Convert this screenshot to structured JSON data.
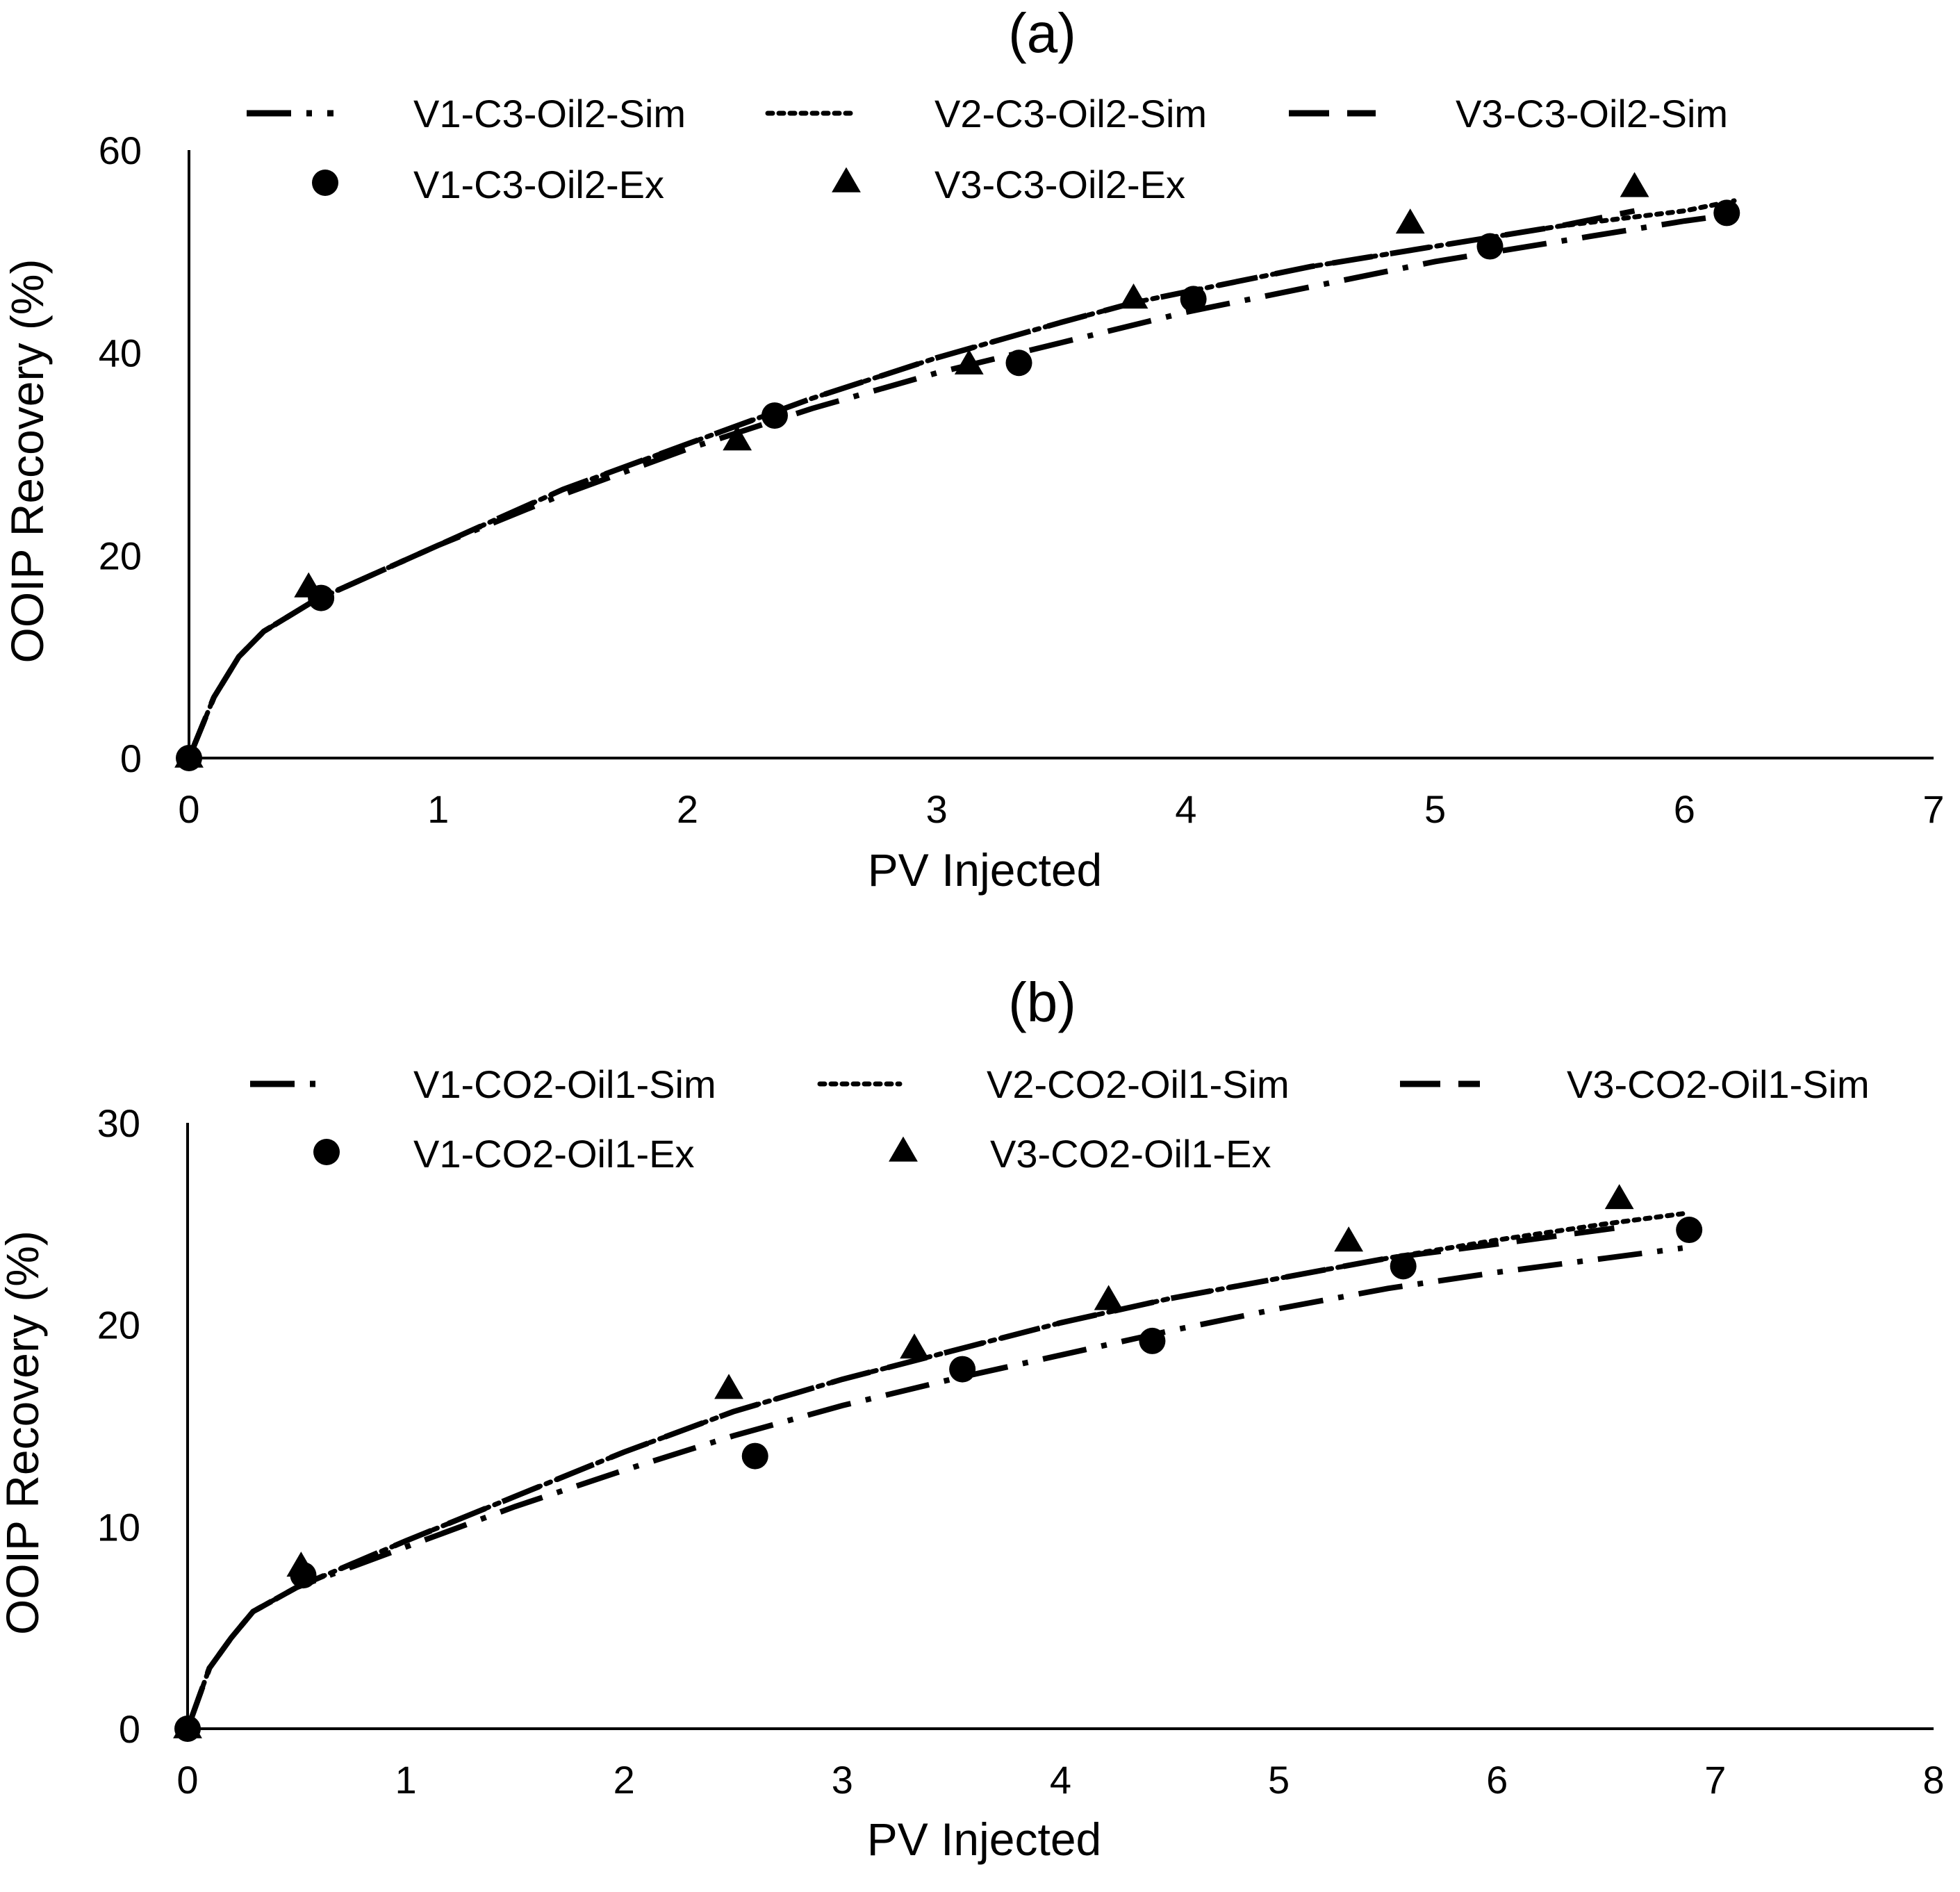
{
  "chart_data": [
    {
      "type": "line",
      "title": "(a)",
      "xlabel": "PV Injected",
      "ylabel": "OOIP Recovery (%)",
      "xlim": [
        0,
        7
      ],
      "ylim": [
        0,
        60
      ],
      "xticks": [
        "0",
        "1",
        "2",
        "3",
        "4",
        "5",
        "6",
        "7"
      ],
      "yticks": [
        "0",
        "20",
        "40",
        "60"
      ],
      "grid": false,
      "legend_position": "top",
      "series": [
        {
          "name": "V1-C3-Oil2-Sim",
          "kind": "line",
          "dash": "dash-dot",
          "x": [
            0,
            0.05,
            0.1,
            0.2,
            0.3,
            0.5,
            1,
            1.5,
            2,
            2.5,
            3,
            3.5,
            4,
            4.5,
            5,
            5.5,
            6,
            6.15
          ],
          "y": [
            0,
            3,
            6,
            10,
            12.5,
            15.5,
            21,
            26,
            30.5,
            34.5,
            38,
            41,
            44,
            46.5,
            49,
            51,
            53,
            53.5
          ]
        },
        {
          "name": "V2-C3-Oil2-Sim",
          "kind": "line",
          "dash": "dotted",
          "x": [
            0,
            0.05,
            0.1,
            0.2,
            0.3,
            0.5,
            1,
            1.5,
            2,
            2.5,
            3,
            3.5,
            3.8,
            4,
            4.5,
            5,
            5.5,
            6,
            6.2
          ],
          "y": [
            0,
            3,
            6,
            10,
            12.5,
            15.5,
            21,
            26.5,
            31,
            35.5,
            39.5,
            43,
            45,
            46,
            48.5,
            50.5,
            52.5,
            54,
            55
          ]
        },
        {
          "name": "V3-C3-Oil2-Sim",
          "kind": "line",
          "dash": "dashed",
          "x": [
            0,
            0.05,
            0.1,
            0.2,
            0.3,
            0.5,
            1,
            1.5,
            2,
            2.5,
            3,
            3.5,
            3.8,
            4,
            4.5,
            5,
            5.5,
            5.8
          ],
          "y": [
            0,
            3,
            6,
            10,
            12.5,
            15.5,
            21,
            26.5,
            31,
            35.5,
            39.5,
            43,
            45,
            46,
            48.5,
            50.5,
            52.5,
            54
          ]
        },
        {
          "name": "V1-C3-Oil2-Ex",
          "kind": "scatter",
          "marker": "circle",
          "x": [
            0,
            0.53,
            2.35,
            3.33,
            4.03,
            5.22,
            6.17
          ],
          "y": [
            0,
            15.8,
            33.8,
            39,
            45.3,
            50.5,
            53.8
          ]
        },
        {
          "name": "V3-C3-Oil2-Ex",
          "kind": "scatter",
          "marker": "triangle",
          "x": [
            0,
            0.48,
            2.2,
            3.13,
            3.79,
            4.9,
            5.8
          ],
          "y": [
            0,
            16.8,
            31.3,
            38.8,
            45.3,
            52.7,
            56.3
          ]
        }
      ]
    },
    {
      "type": "line",
      "title": "(b)",
      "xlabel": "PV Injected",
      "ylabel": "OOIP Recovery (%)",
      "xlim": [
        0,
        8
      ],
      "ylim": [
        0,
        30
      ],
      "xticks": [
        "0",
        "1",
        "2",
        "3",
        "4",
        "5",
        "6",
        "7",
        "8"
      ],
      "yticks": [
        "0",
        "10",
        "20",
        "30"
      ],
      "grid": false,
      "legend_position": "top",
      "series": [
        {
          "name": "V1-CO2-Oil1-Sim",
          "kind": "line",
          "dash": "dash-dot",
          "x": [
            0,
            0.05,
            0.1,
            0.2,
            0.3,
            0.5,
            1,
            1.5,
            2,
            2.5,
            3,
            3.5,
            4,
            4.5,
            5,
            5.5,
            6,
            6.5,
            6.85
          ],
          "y": [
            0,
            1.5,
            3,
            4.5,
            5.8,
            7,
            9,
            11,
            12.8,
            14.5,
            16,
            17.3,
            18.5,
            19.7,
            20.8,
            21.8,
            22.6,
            23.3,
            23.8
          ]
        },
        {
          "name": "V2-CO2-Oil1-Sim",
          "kind": "line",
          "dash": "dotted",
          "x": [
            0,
            0.05,
            0.1,
            0.2,
            0.3,
            0.5,
            1,
            1.5,
            2,
            2.5,
            3,
            3.5,
            4,
            4.5,
            5,
            5.5,
            6,
            6.5,
            6.85
          ],
          "y": [
            0,
            1.5,
            3,
            4.5,
            5.8,
            7,
            9.3,
            11.5,
            13.7,
            15.7,
            17.3,
            18.7,
            20.1,
            21.3,
            22.3,
            23.3,
            24.2,
            25,
            25.5
          ]
        },
        {
          "name": "V3-CO2-Oil1-Sim",
          "kind": "line",
          "dash": "dashed",
          "x": [
            0,
            0.05,
            0.1,
            0.2,
            0.3,
            0.5,
            1,
            1.5,
            2,
            2.5,
            3,
            3.5,
            4,
            4.5,
            5,
            5.5,
            6,
            6.55
          ],
          "y": [
            0,
            1.5,
            3,
            4.5,
            5.8,
            7,
            9.3,
            11.5,
            13.7,
            15.7,
            17.3,
            18.7,
            20.1,
            21.3,
            22.3,
            23.3,
            24,
            24.8
          ]
        },
        {
          "name": "V1-CO2-Oil1-Ex",
          "kind": "scatter",
          "marker": "circle",
          "x": [
            0,
            0.53,
            2.6,
            3.55,
            4.42,
            5.57,
            6.88
          ],
          "y": [
            0,
            7.6,
            13.5,
            17.8,
            19.2,
            22.9,
            24.7
          ]
        },
        {
          "name": "V3-CO2-Oil1-Ex",
          "kind": "scatter",
          "marker": "triangle",
          "x": [
            0,
            0.52,
            2.48,
            3.33,
            4.22,
            5.32,
            6.56
          ],
          "y": [
            0,
            8,
            16.8,
            18.8,
            21.2,
            24.1,
            26.2
          ]
        }
      ]
    }
  ]
}
